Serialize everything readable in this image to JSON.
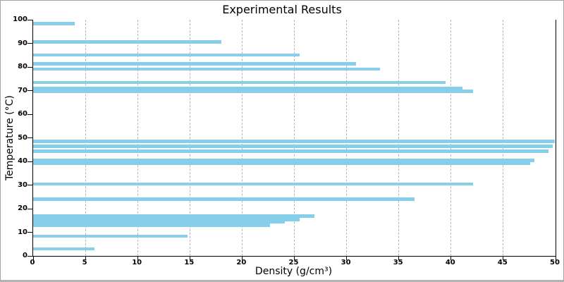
{
  "chart_data": {
    "type": "bar",
    "orientation": "horizontal",
    "title": "Experimental Results",
    "xlabel": "Density (g/cm³)",
    "ylabel": "Temperature (°C)",
    "xlim": [
      0,
      50
    ],
    "ylim": [
      0,
      100
    ],
    "x_ticks": [
      0,
      5,
      10,
      15,
      20,
      25,
      30,
      35,
      40,
      45,
      50
    ],
    "y_ticks": [
      0,
      10,
      20,
      30,
      40,
      50,
      60,
      70,
      80,
      90,
      100
    ],
    "grid": "vertical-dashed",
    "legend": "none",
    "bar_color": "#87CEEB",
    "bar_thickness_units": 1.4,
    "points": [
      {
        "temperature": 98.3,
        "density": 4.0
      },
      {
        "temperature": 90.5,
        "density": 18.0
      },
      {
        "temperature": 85.1,
        "density": 25.5
      },
      {
        "temperature": 81.3,
        "density": 30.9
      },
      {
        "temperature": 79.1,
        "density": 33.2
      },
      {
        "temperature": 73.4,
        "density": 39.5
      },
      {
        "temperature": 70.9,
        "density": 41.1
      },
      {
        "temperature": 69.7,
        "density": 42.1
      },
      {
        "temperature": 48.5,
        "density": 49.9
      },
      {
        "temperature": 46.4,
        "density": 49.7
      },
      {
        "temperature": 44.4,
        "density": 49.3
      },
      {
        "temperature": 40.5,
        "density": 48.0
      },
      {
        "temperature": 39.3,
        "density": 47.6
      },
      {
        "temperature": 30.4,
        "density": 42.1
      },
      {
        "temperature": 24.1,
        "density": 36.5
      },
      {
        "temperature": 16.8,
        "density": 26.9
      },
      {
        "temperature": 15.4,
        "density": 25.5
      },
      {
        "temperature": 14.3,
        "density": 24.1
      },
      {
        "temperature": 13.0,
        "density": 22.7
      },
      {
        "temperature": 8.4,
        "density": 14.8
      },
      {
        "temperature": 3.0,
        "density": 5.9
      }
    ]
  }
}
